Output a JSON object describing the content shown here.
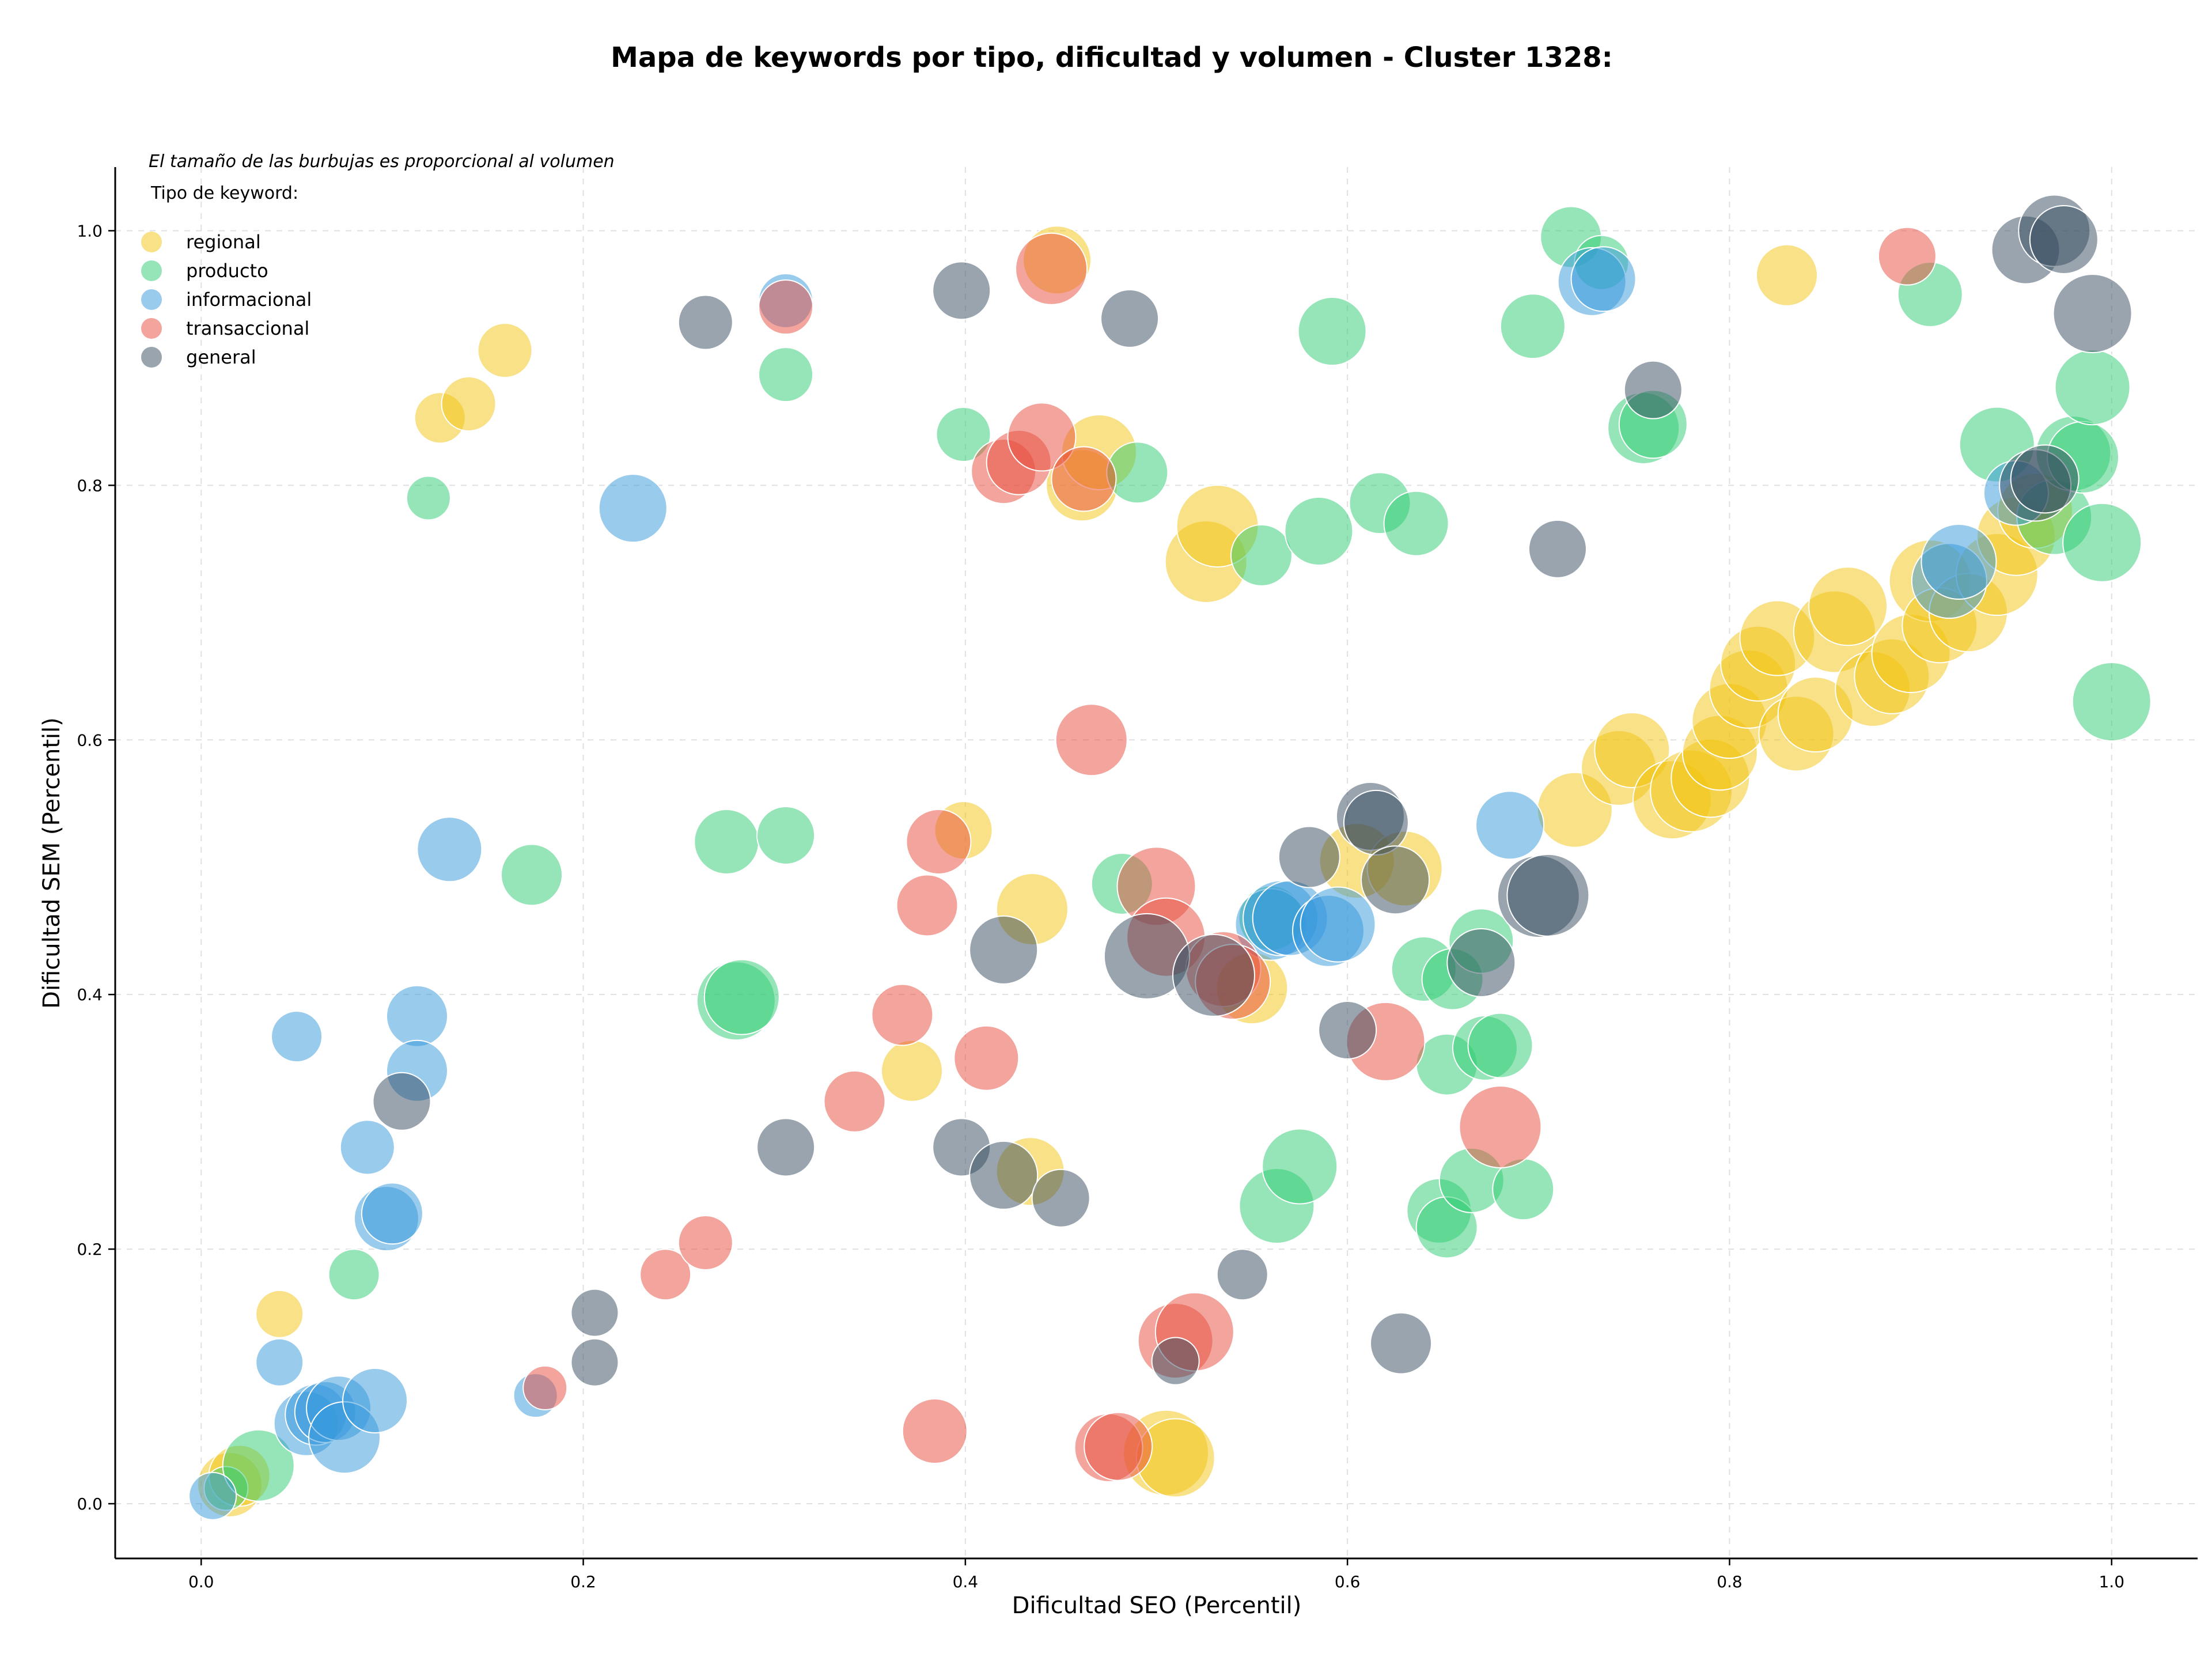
{
  "chart_data": {
    "type": "scatter",
    "title": "Mapa de keywords por tipo, dificultad y volumen - Cluster 1328:",
    "xlabel": "Dificultad SEO (Percentil)",
    "ylabel": "Dificultad SEM (Percentil)",
    "xlim": [
      -0.045,
      1.045
    ],
    "ylim": [
      -0.043,
      1.05
    ],
    "xticks": [
      0.0,
      0.2,
      0.4,
      0.6,
      0.8,
      1.0
    ],
    "yticks": [
      0.0,
      0.2,
      0.4,
      0.6,
      0.8,
      1.0
    ],
    "xtick_labels": [
      "0.0",
      "0.2",
      "0.4",
      "0.6",
      "0.8",
      "1.0"
    ],
    "ytick_labels": [
      "0.0",
      "0.2",
      "0.4",
      "0.6",
      "0.8",
      "1.0"
    ],
    "grid": true,
    "note": "El tamaño de las burbujas es proporcional al volumen",
    "legend_title": "Tipo de keyword:",
    "legend_position": "upper-left",
    "series": [
      {
        "name": "regional",
        "color": "#F1C40F",
        "points": [
          [
            0.015,
            0.015,
            0.6
          ],
          [
            0.02,
            0.022,
            0.55
          ],
          [
            0.041,
            0.149,
            0.35
          ],
          [
            0.125,
            0.853,
            0.4
          ],
          [
            0.14,
            0.864,
            0.45
          ],
          [
            0.159,
            0.906,
            0.45
          ],
          [
            0.372,
            0.34,
            0.55
          ],
          [
            0.399,
            0.529,
            0.5
          ],
          [
            0.434,
            0.261,
            0.65
          ],
          [
            0.435,
            0.467,
            0.7
          ],
          [
            0.448,
            0.977,
            0.65
          ],
          [
            0.461,
            0.8,
            0.7
          ],
          [
            0.47,
            0.826,
            0.75
          ],
          [
            0.505,
            0.04,
            0.9
          ],
          [
            0.51,
            0.036,
            0.8
          ],
          [
            0.526,
            0.74,
            0.85
          ],
          [
            0.532,
            0.768,
            0.85
          ],
          [
            0.55,
            0.405,
            0.7
          ],
          [
            0.605,
            0.505,
            0.75
          ],
          [
            0.63,
            0.499,
            0.75
          ],
          [
            0.719,
            0.545,
            0.75
          ],
          [
            0.742,
            0.578,
            0.75
          ],
          [
            0.749,
            0.592,
            0.75
          ],
          [
            0.77,
            0.553,
            0.8
          ],
          [
            0.78,
            0.56,
            0.85
          ],
          [
            0.79,
            0.57,
            0.8
          ],
          [
            0.795,
            0.59,
            0.75
          ],
          [
            0.8,
            0.615,
            0.75
          ],
          [
            0.81,
            0.64,
            0.8
          ],
          [
            0.815,
            0.66,
            0.75
          ],
          [
            0.825,
            0.68,
            0.75
          ],
          [
            0.83,
            0.965,
            0.55
          ],
          [
            0.835,
            0.605,
            0.75
          ],
          [
            0.845,
            0.62,
            0.75
          ],
          [
            0.855,
            0.685,
            0.85
          ],
          [
            0.862,
            0.705,
            0.8
          ],
          [
            0.875,
            0.64,
            0.75
          ],
          [
            0.885,
            0.65,
            0.75
          ],
          [
            0.895,
            0.668,
            0.8
          ],
          [
            0.905,
            0.725,
            0.85
          ],
          [
            0.91,
            0.69,
            0.75
          ],
          [
            0.925,
            0.7,
            0.8
          ],
          [
            0.94,
            0.73,
            0.85
          ],
          [
            0.95,
            0.76,
            0.8
          ],
          [
            0.96,
            0.78,
            0.75
          ]
        ]
      },
      {
        "name": "producto",
        "color": "#2ECC71",
        "points": [
          [
            0.013,
            0.012,
            0.3
          ],
          [
            0.03,
            0.03,
            0.7
          ],
          [
            0.08,
            0.18,
            0.4
          ],
          [
            0.119,
            0.79,
            0.3
          ],
          [
            0.173,
            0.494,
            0.55
          ],
          [
            0.275,
            0.52,
            0.6
          ],
          [
            0.28,
            0.395,
            0.8
          ],
          [
            0.283,
            0.398,
            0.75
          ],
          [
            0.306,
            0.525,
            0.5
          ],
          [
            0.306,
            0.887,
            0.45
          ],
          [
            0.399,
            0.84,
            0.45
          ],
          [
            0.482,
            0.487,
            0.55
          ],
          [
            0.49,
            0.81,
            0.55
          ],
          [
            0.555,
            0.745,
            0.55
          ],
          [
            0.56,
            0.46,
            0.6
          ],
          [
            0.563,
            0.234,
            0.75
          ],
          [
            0.575,
            0.265,
            0.75
          ],
          [
            0.585,
            0.764,
            0.65
          ],
          [
            0.592,
            0.921,
            0.65
          ],
          [
            0.617,
            0.786,
            0.55
          ],
          [
            0.636,
            0.77,
            0.6
          ],
          [
            0.64,
            0.42,
            0.6
          ],
          [
            0.648,
            0.23,
            0.6
          ],
          [
            0.652,
            0.345,
            0.55
          ],
          [
            0.652,
            0.217,
            0.55
          ],
          [
            0.655,
            0.412,
            0.55
          ],
          [
            0.67,
            0.442,
            0.6
          ],
          [
            0.665,
            0.254,
            0.6
          ],
          [
            0.672,
            0.358,
            0.6
          ],
          [
            0.68,
            0.36,
            0.6
          ],
          [
            0.692,
            0.247,
            0.55
          ],
          [
            0.697,
            0.925,
            0.6
          ],
          [
            0.717,
            0.995,
            0.55
          ],
          [
            0.733,
            0.975,
            0.45
          ],
          [
            0.755,
            0.845,
            0.7
          ],
          [
            0.76,
            0.848,
            0.65
          ],
          [
            0.905,
            0.95,
            0.6
          ],
          [
            0.94,
            0.832,
            0.75
          ],
          [
            0.97,
            0.775,
            0.75
          ],
          [
            0.98,
            0.825,
            0.75
          ],
          [
            0.985,
            0.822,
            0.7
          ],
          [
            0.99,
            0.877,
            0.75
          ],
          [
            0.995,
            0.755,
            0.8
          ],
          [
            1.0,
            0.63,
            0.8
          ]
        ]
      },
      {
        "name": "informacional",
        "color": "#3498DB",
        "points": [
          [
            0.006,
            0.006,
            0.35
          ],
          [
            0.041,
            0.111,
            0.35
          ],
          [
            0.05,
            0.367,
            0.4
          ],
          [
            0.055,
            0.063,
            0.6
          ],
          [
            0.06,
            0.07,
            0.55
          ],
          [
            0.065,
            0.072,
            0.55
          ],
          [
            0.072,
            0.075,
            0.6
          ],
          [
            0.075,
            0.052,
            0.7
          ],
          [
            0.087,
            0.28,
            0.45
          ],
          [
            0.091,
            0.081,
            0.6
          ],
          [
            0.097,
            0.224,
            0.6
          ],
          [
            0.1,
            0.228,
            0.55
          ],
          [
            0.113,
            0.383,
            0.55
          ],
          [
            0.113,
            0.34,
            0.55
          ],
          [
            0.13,
            0.514,
            0.6
          ],
          [
            0.175,
            0.085,
            0.3
          ],
          [
            0.226,
            0.782,
            0.65
          ],
          [
            0.306,
            0.945,
            0.45
          ],
          [
            0.56,
            0.455,
            0.7
          ],
          [
            0.565,
            0.46,
            0.75
          ],
          [
            0.57,
            0.46,
            0.75
          ],
          [
            0.59,
            0.45,
            0.7
          ],
          [
            0.595,
            0.455,
            0.75
          ],
          [
            0.685,
            0.533,
            0.65
          ],
          [
            0.728,
            0.96,
            0.65
          ],
          [
            0.734,
            0.962,
            0.6
          ],
          [
            0.915,
            0.725,
            0.75
          ],
          [
            0.92,
            0.74,
            0.75
          ],
          [
            0.95,
            0.794,
            0.6
          ]
        ]
      },
      {
        "name": "transaccional",
        "color": "#E74C3C",
        "points": [
          [
            0.18,
            0.091,
            0.3
          ],
          [
            0.243,
            0.18,
            0.4
          ],
          [
            0.264,
            0.205,
            0.45
          ],
          [
            0.306,
            0.94,
            0.45
          ],
          [
            0.342,
            0.316,
            0.55
          ],
          [
            0.367,
            0.384,
            0.55
          ],
          [
            0.38,
            0.47,
            0.55
          ],
          [
            0.384,
            0.057,
            0.6
          ],
          [
            0.386,
            0.52,
            0.6
          ],
          [
            0.411,
            0.35,
            0.6
          ],
          [
            0.42,
            0.811,
            0.6
          ],
          [
            0.428,
            0.818,
            0.6
          ],
          [
            0.44,
            0.838,
            0.65
          ],
          [
            0.445,
            0.97,
            0.7
          ],
          [
            0.462,
            0.805,
            0.6
          ],
          [
            0.466,
            0.6,
            0.7
          ],
          [
            0.475,
            0.044,
            0.65
          ],
          [
            0.48,
            0.045,
            0.65
          ],
          [
            0.5,
            0.485,
            0.8
          ],
          [
            0.505,
            0.445,
            0.8
          ],
          [
            0.51,
            0.128,
            0.75
          ],
          [
            0.52,
            0.135,
            0.8
          ],
          [
            0.535,
            0.42,
            0.75
          ],
          [
            0.54,
            0.41,
            0.75
          ],
          [
            0.62,
            0.363,
            0.8
          ],
          [
            0.68,
            0.296,
            0.85
          ],
          [
            0.893,
            0.98,
            0.5
          ]
        ]
      },
      {
        "name": "general",
        "color": "#34495E",
        "points": [
          [
            0.105,
            0.316,
            0.5
          ],
          [
            0.206,
            0.15,
            0.35
          ],
          [
            0.206,
            0.111,
            0.35
          ],
          [
            0.264,
            0.928,
            0.45
          ],
          [
            0.306,
            0.28,
            0.5
          ],
          [
            0.398,
            0.953,
            0.5
          ],
          [
            0.398,
            0.28,
            0.5
          ],
          [
            0.42,
            0.435,
            0.65
          ],
          [
            0.42,
            0.258,
            0.65
          ],
          [
            0.45,
            0.24,
            0.5
          ],
          [
            0.486,
            0.931,
            0.5
          ],
          [
            0.495,
            0.43,
            0.9
          ],
          [
            0.51,
            0.112,
            0.35
          ],
          [
            0.53,
            0.415,
            0.85
          ],
          [
            0.545,
            0.18,
            0.4
          ],
          [
            0.58,
            0.508,
            0.55
          ],
          [
            0.6,
            0.372,
            0.5
          ],
          [
            0.612,
            0.54,
            0.65
          ],
          [
            0.615,
            0.535,
            0.6
          ],
          [
            0.628,
            0.126,
            0.55
          ],
          [
            0.625,
            0.49,
            0.65
          ],
          [
            0.67,
            0.425,
            0.65
          ],
          [
            0.7,
            0.477,
            0.85
          ],
          [
            0.705,
            0.478,
            0.85
          ],
          [
            0.71,
            0.75,
            0.5
          ],
          [
            0.76,
            0.875,
            0.5
          ],
          [
            0.955,
            0.985,
            0.65
          ],
          [
            0.96,
            0.8,
            0.7
          ],
          [
            0.965,
            0.805,
            0.65
          ],
          [
            0.97,
            1.0,
            0.7
          ],
          [
            0.975,
            0.993,
            0.65
          ],
          [
            0.99,
            0.935,
            0.8
          ]
        ]
      }
    ]
  }
}
